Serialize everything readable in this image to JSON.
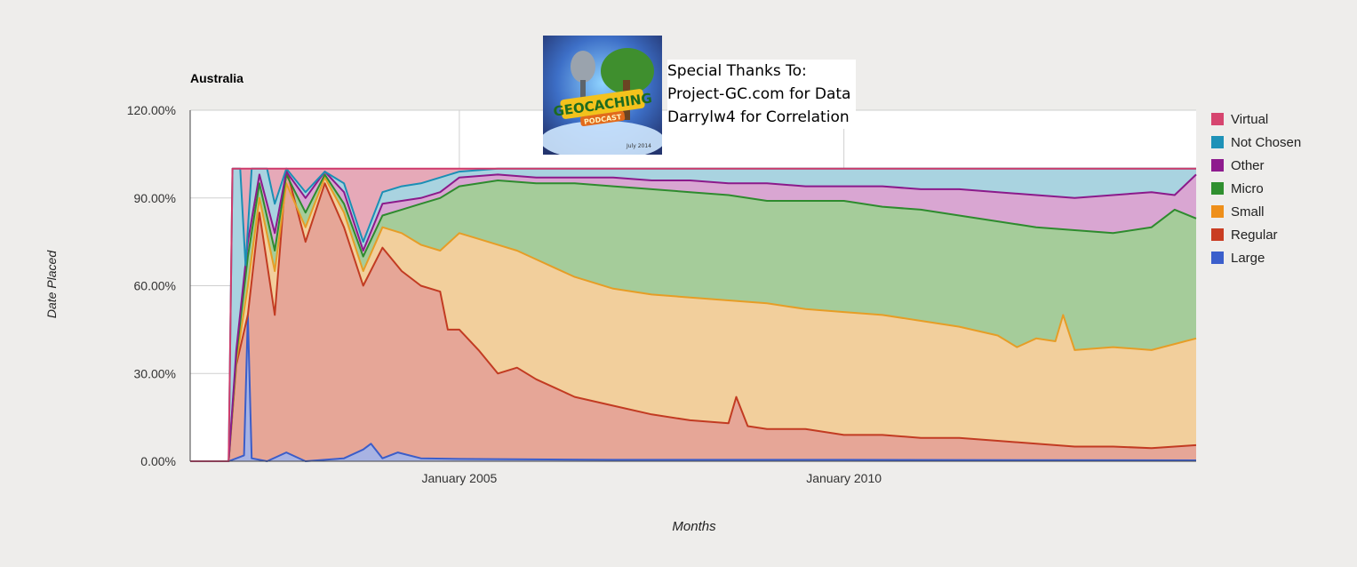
{
  "chart_data": {
    "type": "area",
    "stacked": true,
    "title": "Australia",
    "xlabel": "Months",
    "ylabel": "Date Placed",
    "ylim": [
      0,
      120
    ],
    "y_ticks": [
      "120.00%",
      "90.00%",
      "60.00%",
      "30.00%",
      "0.00%"
    ],
    "y_tick_values": [
      120,
      90,
      60,
      30,
      0
    ],
    "x_range": [
      2001.5,
      2014.58
    ],
    "x_ticks": [
      {
        "value": 2005.0,
        "label": "January 2005"
      },
      {
        "value": 2010.0,
        "label": "January 2010"
      }
    ],
    "legend_position": "right",
    "cumulative_series": [
      {
        "name": "Large",
        "color": "#3b5dc9",
        "fill": "#a8b3e3",
        "points": [
          [
            2001.5,
            0
          ],
          [
            2002.0,
            0
          ],
          [
            2002.2,
            2
          ],
          [
            2002.25,
            50
          ],
          [
            2002.3,
            1
          ],
          [
            2002.5,
            0
          ],
          [
            2002.75,
            3
          ],
          [
            2003.0,
            0
          ],
          [
            2003.5,
            1
          ],
          [
            2003.75,
            4
          ],
          [
            2003.85,
            6
          ],
          [
            2004.0,
            1
          ],
          [
            2004.2,
            3
          ],
          [
            2004.5,
            1
          ],
          [
            2005.0,
            0.8
          ],
          [
            2007.0,
            0.5
          ],
          [
            2010.0,
            0.5
          ],
          [
            2014.58,
            0.3
          ]
        ]
      },
      {
        "name": "Regular",
        "color": "#c23b22",
        "fill": "#e6a697",
        "points": [
          [
            2001.5,
            0
          ],
          [
            2002.0,
            0
          ],
          [
            2002.1,
            33
          ],
          [
            2002.25,
            50
          ],
          [
            2002.4,
            85
          ],
          [
            2002.6,
            50
          ],
          [
            2002.75,
            100
          ],
          [
            2003.0,
            75
          ],
          [
            2003.25,
            95
          ],
          [
            2003.5,
            80
          ],
          [
            2003.75,
            60
          ],
          [
            2004.0,
            73
          ],
          [
            2004.25,
            65
          ],
          [
            2004.5,
            60
          ],
          [
            2004.75,
            58
          ],
          [
            2004.85,
            45
          ],
          [
            2005.0,
            45
          ],
          [
            2005.25,
            38
          ],
          [
            2005.5,
            30
          ],
          [
            2005.75,
            32
          ],
          [
            2006.0,
            28
          ],
          [
            2006.25,
            25
          ],
          [
            2006.5,
            22
          ],
          [
            2007.0,
            19
          ],
          [
            2007.5,
            16
          ],
          [
            2008.0,
            14
          ],
          [
            2008.5,
            13
          ],
          [
            2008.6,
            22
          ],
          [
            2008.75,
            12
          ],
          [
            2009.0,
            11
          ],
          [
            2009.5,
            11
          ],
          [
            2010.0,
            9
          ],
          [
            2010.5,
            9
          ],
          [
            2011.0,
            8
          ],
          [
            2011.5,
            8
          ],
          [
            2012.0,
            7
          ],
          [
            2012.5,
            6
          ],
          [
            2013.0,
            5
          ],
          [
            2013.5,
            5
          ],
          [
            2014.0,
            4.5
          ],
          [
            2014.58,
            5.5
          ]
        ]
      },
      {
        "name": "Small",
        "color": "#e69d26",
        "fill": "#f2cf9c",
        "points": [
          [
            2001.5,
            0
          ],
          [
            2002.0,
            0
          ],
          [
            2002.1,
            34
          ],
          [
            2002.25,
            60
          ],
          [
            2002.4,
            90
          ],
          [
            2002.6,
            65
          ],
          [
            2002.75,
            95
          ],
          [
            2003.0,
            80
          ],
          [
            2003.25,
            97
          ],
          [
            2003.5,
            85
          ],
          [
            2003.75,
            65
          ],
          [
            2004.0,
            80
          ],
          [
            2004.25,
            78
          ],
          [
            2004.5,
            74
          ],
          [
            2004.75,
            72
          ],
          [
            2005.0,
            78
          ],
          [
            2005.25,
            76
          ],
          [
            2005.5,
            74
          ],
          [
            2005.75,
            72
          ],
          [
            2006.0,
            69
          ],
          [
            2006.25,
            66
          ],
          [
            2006.5,
            63
          ],
          [
            2007.0,
            59
          ],
          [
            2007.5,
            57
          ],
          [
            2008.0,
            56
          ],
          [
            2008.5,
            55
          ],
          [
            2009.0,
            54
          ],
          [
            2009.5,
            52
          ],
          [
            2010.0,
            51
          ],
          [
            2010.5,
            50
          ],
          [
            2011.0,
            48
          ],
          [
            2011.5,
            46
          ],
          [
            2012.0,
            43
          ],
          [
            2012.25,
            39
          ],
          [
            2012.5,
            42
          ],
          [
            2012.75,
            41
          ],
          [
            2012.85,
            50
          ],
          [
            2013.0,
            38
          ],
          [
            2013.5,
            39
          ],
          [
            2014.0,
            38
          ],
          [
            2014.58,
            42
          ]
        ]
      },
      {
        "name": "Micro",
        "color": "#2e8b2e",
        "fill": "#a5cc9a",
        "points": [
          [
            2001.5,
            0
          ],
          [
            2002.0,
            0
          ],
          [
            2002.1,
            36
          ],
          [
            2002.25,
            70
          ],
          [
            2002.4,
            95
          ],
          [
            2002.6,
            72
          ],
          [
            2002.75,
            98
          ],
          [
            2003.0,
            85
          ],
          [
            2003.25,
            98
          ],
          [
            2003.5,
            88
          ],
          [
            2003.75,
            70
          ],
          [
            2004.0,
            84
          ],
          [
            2004.25,
            86
          ],
          [
            2004.5,
            88
          ],
          [
            2004.75,
            90
          ],
          [
            2005.0,
            94
          ],
          [
            2005.5,
            96
          ],
          [
            2006.0,
            95
          ],
          [
            2006.5,
            95
          ],
          [
            2007.0,
            94
          ],
          [
            2007.5,
            93
          ],
          [
            2008.0,
            92
          ],
          [
            2008.5,
            91
          ],
          [
            2009.0,
            89
          ],
          [
            2009.5,
            89
          ],
          [
            2010.0,
            89
          ],
          [
            2010.5,
            87
          ],
          [
            2011.0,
            86
          ],
          [
            2011.5,
            84
          ],
          [
            2012.0,
            82
          ],
          [
            2012.5,
            80
          ],
          [
            2013.0,
            79
          ],
          [
            2013.5,
            78
          ],
          [
            2014.0,
            80
          ],
          [
            2014.3,
            86
          ],
          [
            2014.58,
            83
          ]
        ]
      },
      {
        "name": "Other",
        "color": "#8b1a8b",
        "fill": "#d9a6d2",
        "points": [
          [
            2001.5,
            0
          ],
          [
            2002.0,
            0
          ],
          [
            2002.1,
            38
          ],
          [
            2002.25,
            75
          ],
          [
            2002.4,
            98
          ],
          [
            2002.6,
            78
          ],
          [
            2002.75,
            99
          ],
          [
            2003.0,
            90
          ],
          [
            2003.25,
            99
          ],
          [
            2003.5,
            92
          ],
          [
            2003.75,
            72
          ],
          [
            2004.0,
            88
          ],
          [
            2004.25,
            89
          ],
          [
            2004.5,
            90
          ],
          [
            2004.75,
            92
          ],
          [
            2005.0,
            97
          ],
          [
            2005.5,
            98
          ],
          [
            2006.0,
            97
          ],
          [
            2006.5,
            97
          ],
          [
            2007.0,
            97
          ],
          [
            2007.5,
            96
          ],
          [
            2008.0,
            96
          ],
          [
            2008.5,
            95
          ],
          [
            2009.0,
            95
          ],
          [
            2009.5,
            94
          ],
          [
            2010.0,
            94
          ],
          [
            2010.5,
            94
          ],
          [
            2011.0,
            93
          ],
          [
            2011.5,
            93
          ],
          [
            2012.0,
            92
          ],
          [
            2012.5,
            91
          ],
          [
            2013.0,
            90
          ],
          [
            2013.5,
            91
          ],
          [
            2014.0,
            92
          ],
          [
            2014.3,
            91
          ],
          [
            2014.58,
            98
          ]
        ]
      },
      {
        "name": "Not Chosen",
        "color": "#1b8fb5",
        "fill": "#a9d3e0",
        "points": [
          [
            2001.5,
            0
          ],
          [
            2002.0,
            0
          ],
          [
            2002.05,
            100
          ],
          [
            2002.15,
            100
          ],
          [
            2002.22,
            67
          ],
          [
            2002.3,
            100
          ],
          [
            2002.5,
            100
          ],
          [
            2002.6,
            88
          ],
          [
            2002.75,
            100
          ],
          [
            2003.0,
            92
          ],
          [
            2003.25,
            99
          ],
          [
            2003.5,
            95
          ],
          [
            2003.75,
            75
          ],
          [
            2004.0,
            92
          ],
          [
            2004.25,
            94
          ],
          [
            2004.5,
            95
          ],
          [
            2004.75,
            97
          ],
          [
            2005.0,
            99
          ],
          [
            2005.5,
            100
          ],
          [
            2014.58,
            100
          ]
        ]
      },
      {
        "name": "Virtual",
        "color": "#cf3b6b",
        "fill": "#e6a9b8",
        "points": [
          [
            2001.5,
            0
          ],
          [
            2002.0,
            0
          ],
          [
            2002.05,
            100
          ],
          [
            2014.58,
            100
          ]
        ]
      }
    ]
  },
  "logo": {
    "banner_text": "GEOCACHING",
    "sub_text": "PODCAST",
    "date_text": "July 2014"
  },
  "thanks": {
    "line1": "Special Thanks To:",
    "line2": "Project-GC.com for Data",
    "line3": "Darrylw4 for Correlation"
  },
  "legend": {
    "items": [
      {
        "label": "Virtual",
        "color": "#d6456f"
      },
      {
        "label": "Not Chosen",
        "color": "#1f92b8"
      },
      {
        "label": "Other",
        "color": "#8e1b8e"
      },
      {
        "label": "Micro",
        "color": "#2f8f2f"
      },
      {
        "label": "Small",
        "color": "#ee8f1a"
      },
      {
        "label": "Regular",
        "color": "#c93d22"
      },
      {
        "label": "Large",
        "color": "#3b5fcc"
      }
    ]
  }
}
